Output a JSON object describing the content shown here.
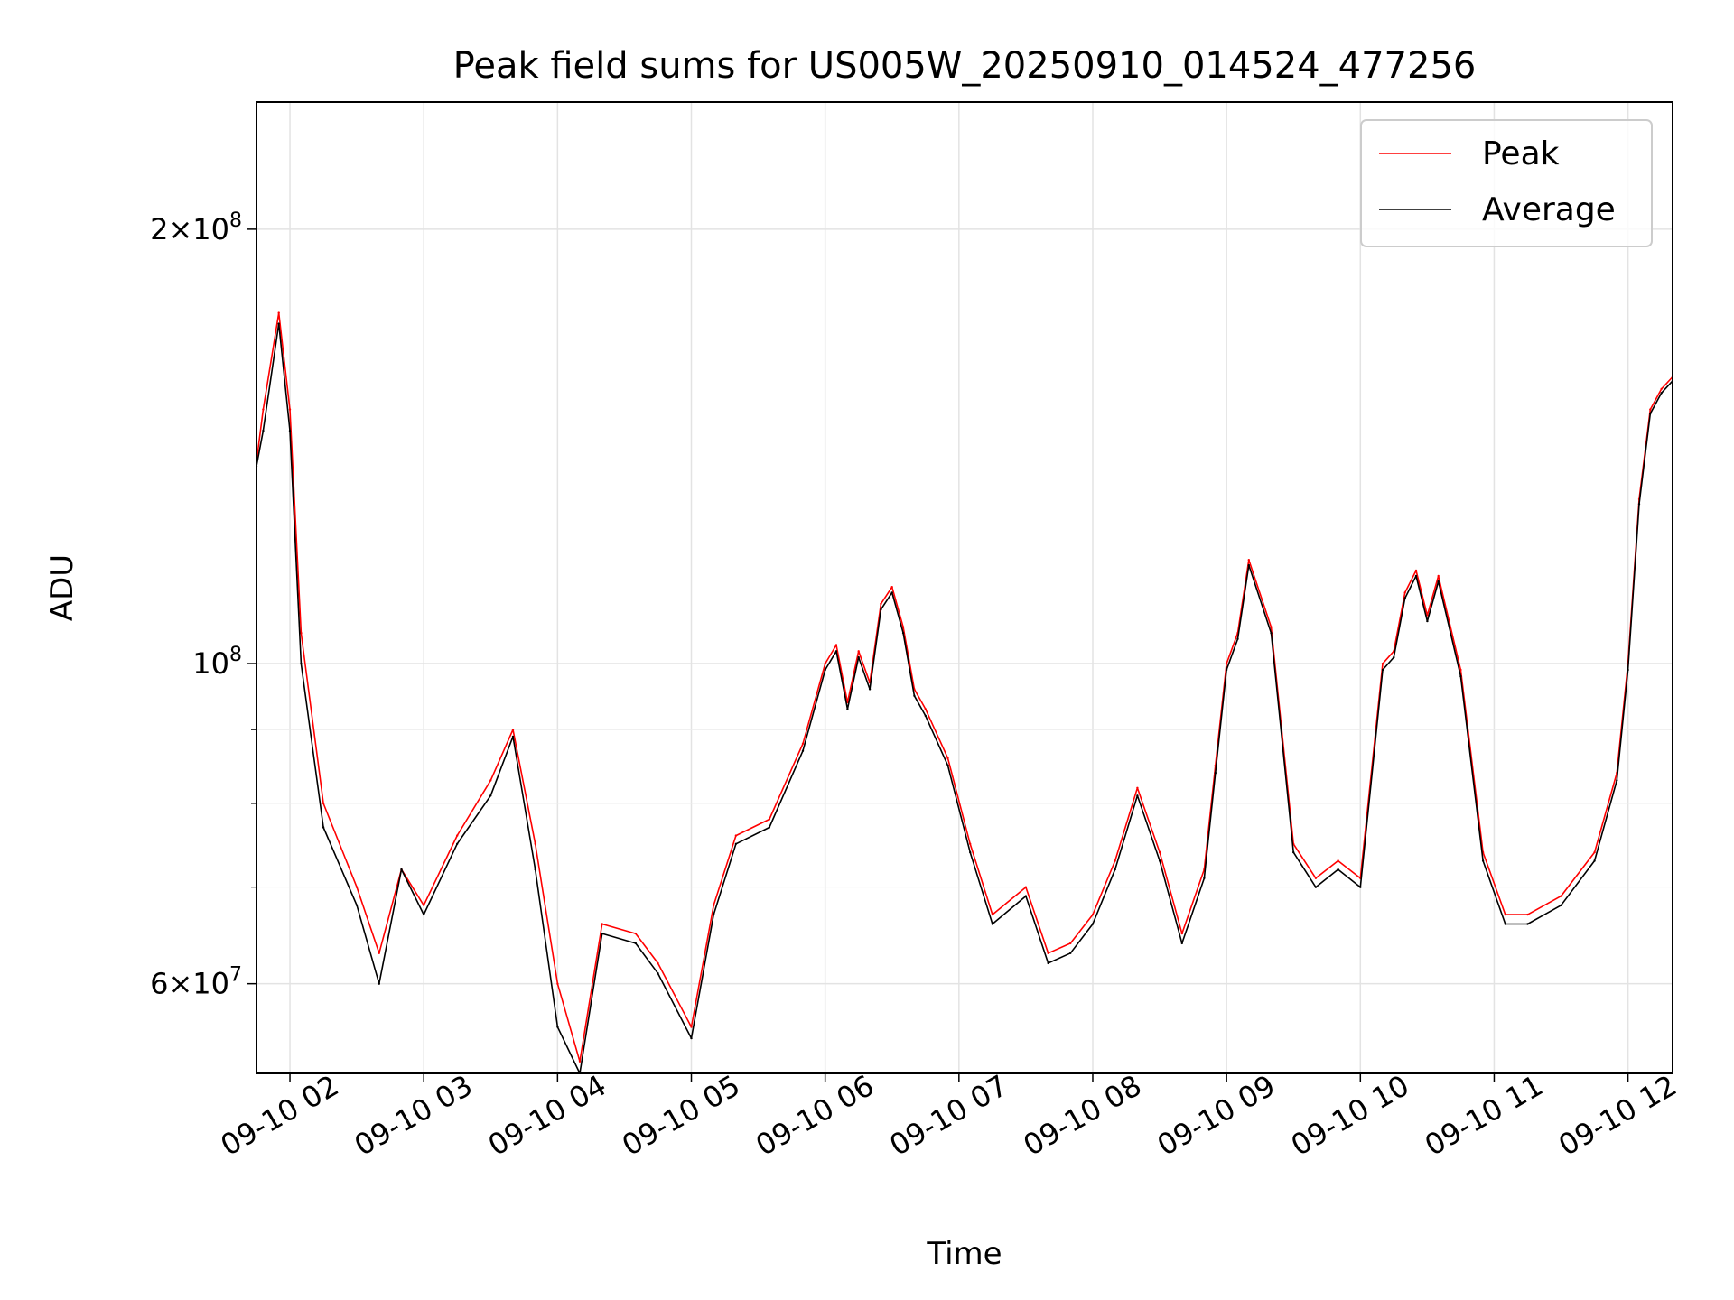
{
  "chart_data": {
    "type": "line",
    "title": "Peak field sums for US005W_20250910_014524_477256",
    "xlabel": "Time",
    "ylabel": "ADU",
    "yscale": "log",
    "ylim": [
      52000000,
      245000000
    ],
    "xlim": [
      "2025-09-10 01:45",
      "2025-09-10 12:20"
    ],
    "grid": true,
    "legend": {
      "placement": "top-right",
      "entries": [
        "Peak",
        "Average"
      ]
    },
    "x_tick_labels": [
      "09-10 02",
      "09-10 03",
      "09-10 04",
      "09-10 05",
      "09-10 06",
      "09-10 07",
      "09-10 08",
      "09-10 09",
      "09-10 10",
      "09-10 11",
      "09-10 12"
    ],
    "x_tick_times": [
      "2025-09-10 02:00",
      "2025-09-10 03:00",
      "2025-09-10 04:00",
      "2025-09-10 05:00",
      "2025-09-10 06:00",
      "2025-09-10 07:00",
      "2025-09-10 08:00",
      "2025-09-10 09:00",
      "2025-09-10 10:00",
      "2025-09-10 11:00",
      "2025-09-10 12:00"
    ],
    "y_major_ticks": [
      {
        "value": 60000000,
        "mantissa": "6",
        "exponent": "7"
      },
      {
        "value": 100000000,
        "mantissa": "",
        "exponent": "8"
      },
      {
        "value": 200000000,
        "mantissa": "2",
        "exponent": "8"
      }
    ],
    "y_minor_ticks": [
      70000000,
      80000000,
      90000000
    ],
    "series": [
      {
        "name": "Peak",
        "color": "#ff0000",
        "x": [
          "2025-09-10 01:45",
          "2025-09-10 01:48",
          "2025-09-10 01:55",
          "2025-09-10 02:00",
          "2025-09-10 02:05",
          "2025-09-10 02:15",
          "2025-09-10 02:30",
          "2025-09-10 02:40",
          "2025-09-10 02:50",
          "2025-09-10 03:00",
          "2025-09-10 03:15",
          "2025-09-10 03:30",
          "2025-09-10 03:40",
          "2025-09-10 03:50",
          "2025-09-10 04:00",
          "2025-09-10 04:10",
          "2025-09-10 04:20",
          "2025-09-10 04:35",
          "2025-09-10 04:45",
          "2025-09-10 05:00",
          "2025-09-10 05:10",
          "2025-09-10 05:20",
          "2025-09-10 05:35",
          "2025-09-10 05:50",
          "2025-09-10 06:00",
          "2025-09-10 06:05",
          "2025-09-10 06:10",
          "2025-09-10 06:15",
          "2025-09-10 06:20",
          "2025-09-10 06:25",
          "2025-09-10 06:30",
          "2025-09-10 06:35",
          "2025-09-10 06:40",
          "2025-09-10 06:45",
          "2025-09-10 06:55",
          "2025-09-10 07:05",
          "2025-09-10 07:15",
          "2025-09-10 07:30",
          "2025-09-10 07:40",
          "2025-09-10 07:50",
          "2025-09-10 08:00",
          "2025-09-10 08:10",
          "2025-09-10 08:20",
          "2025-09-10 08:30",
          "2025-09-10 08:40",
          "2025-09-10 08:50",
          "2025-09-10 08:55",
          "2025-09-10 09:00",
          "2025-09-10 09:05",
          "2025-09-10 09:10",
          "2025-09-10 09:20",
          "2025-09-10 09:30",
          "2025-09-10 09:40",
          "2025-09-10 09:50",
          "2025-09-10 10:00",
          "2025-09-10 10:10",
          "2025-09-10 10:15",
          "2025-09-10 10:20",
          "2025-09-10 10:25",
          "2025-09-10 10:30",
          "2025-09-10 10:35",
          "2025-09-10 10:45",
          "2025-09-10 10:55",
          "2025-09-10 11:05",
          "2025-09-10 11:15",
          "2025-09-10 11:30",
          "2025-09-10 11:45",
          "2025-09-10 11:55",
          "2025-09-10 12:00",
          "2025-09-10 12:05",
          "2025-09-10 12:10",
          "2025-09-10 12:15",
          "2025-09-10 12:20"
        ],
        "y": [
          138000000,
          150000000,
          175000000,
          150000000,
          105000000,
          80000000,
          70000000,
          63000000,
          72000000,
          68000000,
          76000000,
          83000000,
          90000000,
          75000000,
          60000000,
          53000000,
          66000000,
          65000000,
          62000000,
          56000000,
          68000000,
          76000000,
          78000000,
          88000000,
          100000000,
          103000000,
          94000000,
          102000000,
          97000000,
          110000000,
          113000000,
          106000000,
          96000000,
          93000000,
          86000000,
          75000000,
          67000000,
          70000000,
          63000000,
          64000000,
          67000000,
          73000000,
          82000000,
          74000000,
          65000000,
          72000000,
          85000000,
          100000000,
          105000000,
          118000000,
          106000000,
          75000000,
          71000000,
          73000000,
          71000000,
          100000000,
          102000000,
          112000000,
          116000000,
          108000000,
          115000000,
          99000000,
          74000000,
          67000000,
          67000000,
          69000000,
          74000000,
          84000000,
          100000000,
          130000000,
          150000000,
          155000000,
          158000000
        ]
      },
      {
        "name": "Average",
        "color": "#000000",
        "x": [
          "2025-09-10 01:45",
          "2025-09-10 01:48",
          "2025-09-10 01:55",
          "2025-09-10 02:00",
          "2025-09-10 02:05",
          "2025-09-10 02:15",
          "2025-09-10 02:30",
          "2025-09-10 02:40",
          "2025-09-10 02:50",
          "2025-09-10 03:00",
          "2025-09-10 03:15",
          "2025-09-10 03:30",
          "2025-09-10 03:40",
          "2025-09-10 03:50",
          "2025-09-10 04:00",
          "2025-09-10 04:10",
          "2025-09-10 04:20",
          "2025-09-10 04:35",
          "2025-09-10 04:45",
          "2025-09-10 05:00",
          "2025-09-10 05:10",
          "2025-09-10 05:20",
          "2025-09-10 05:35",
          "2025-09-10 05:50",
          "2025-09-10 06:00",
          "2025-09-10 06:05",
          "2025-09-10 06:10",
          "2025-09-10 06:15",
          "2025-09-10 06:20",
          "2025-09-10 06:25",
          "2025-09-10 06:30",
          "2025-09-10 06:35",
          "2025-09-10 06:40",
          "2025-09-10 06:45",
          "2025-09-10 06:55",
          "2025-09-10 07:05",
          "2025-09-10 07:15",
          "2025-09-10 07:30",
          "2025-09-10 07:40",
          "2025-09-10 07:50",
          "2025-09-10 08:00",
          "2025-09-10 08:10",
          "2025-09-10 08:20",
          "2025-09-10 08:30",
          "2025-09-10 08:40",
          "2025-09-10 08:50",
          "2025-09-10 08:55",
          "2025-09-10 09:00",
          "2025-09-10 09:05",
          "2025-09-10 09:10",
          "2025-09-10 09:20",
          "2025-09-10 09:30",
          "2025-09-10 09:40",
          "2025-09-10 09:50",
          "2025-09-10 10:00",
          "2025-09-10 10:10",
          "2025-09-10 10:15",
          "2025-09-10 10:20",
          "2025-09-10 10:25",
          "2025-09-10 10:30",
          "2025-09-10 10:35",
          "2025-09-10 10:45",
          "2025-09-10 10:55",
          "2025-09-10 11:05",
          "2025-09-10 11:15",
          "2025-09-10 11:30",
          "2025-09-10 11:45",
          "2025-09-10 11:55",
          "2025-09-10 12:00",
          "2025-09-10 12:05",
          "2025-09-10 12:10",
          "2025-09-10 12:15",
          "2025-09-10 12:20"
        ],
        "y": [
          137000000,
          145000000,
          172000000,
          145000000,
          100000000,
          77000000,
          68000000,
          60000000,
          72000000,
          67000000,
          75000000,
          81000000,
          89000000,
          72000000,
          56000000,
          52000000,
          65000000,
          64000000,
          61000000,
          55000000,
          67000000,
          75000000,
          77000000,
          87000000,
          99000000,
          102000000,
          93000000,
          101000000,
          96000000,
          109000000,
          112000000,
          105000000,
          95000000,
          92000000,
          85000000,
          74000000,
          66000000,
          69000000,
          62000000,
          63000000,
          66000000,
          72000000,
          81000000,
          73000000,
          64000000,
          71000000,
          84000000,
          99000000,
          104000000,
          117000000,
          105000000,
          74000000,
          70000000,
          72000000,
          70000000,
          99000000,
          101000000,
          111000000,
          115000000,
          107000000,
          114000000,
          98000000,
          73000000,
          66000000,
          66000000,
          68000000,
          73000000,
          83000000,
          99000000,
          129000000,
          149000000,
          154000000,
          157000000
        ]
      }
    ]
  }
}
